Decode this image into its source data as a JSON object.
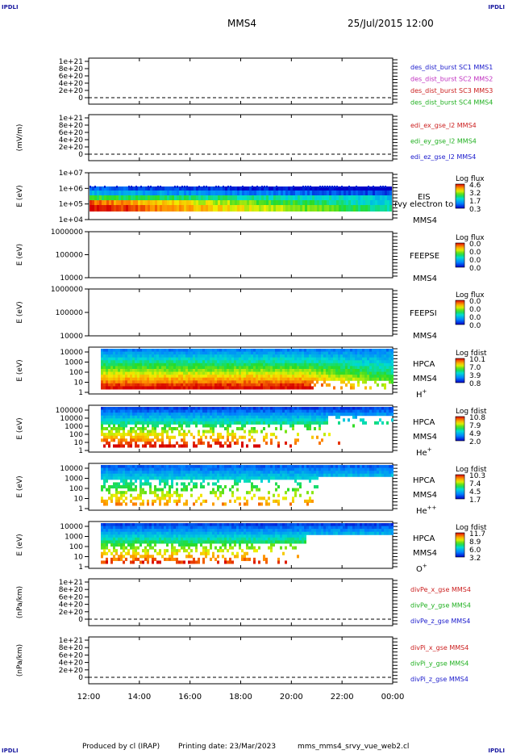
{
  "header": {
    "corner_text": "IPDLI",
    "spacecraft": "MMS4",
    "datetime": "25/Jul/2015 12:00"
  },
  "footer": {
    "produced": "Produced by cl (IRAP)",
    "printed": "Printing date: 23/Mar/2023",
    "script": "mms_mms4_srvy_vue_web2.cl"
  },
  "chart_data": {
    "type": "heatmap",
    "x": {
      "ticks": [
        "12:00",
        "14:00",
        "16:00",
        "18:00",
        "20:00",
        "22:00",
        "00:00"
      ],
      "range_hours": [
        12,
        24
      ]
    },
    "panels": [
      {
        "id": "fpi-density",
        "kind": "line",
        "ylabel": "",
        "yticks": [
          "1e+21",
          "8e+20",
          "6e+20",
          "4e+20",
          "2e+20",
          "0"
        ],
        "ylim": [
          0,
          1e+21
        ],
        "labels": [
          {
            "text": "des_dist_burst SC1 MMS1",
            "color": "#1a1acc"
          },
          {
            "text": "des_dist_burst SC2 MMS2",
            "color": "#c030c0"
          },
          {
            "text": "des_dist_burst SC3 MMS3",
            "color": "#cc2020"
          },
          {
            "text": "des_dist_burst SC4 MMS4",
            "color": "#20b020"
          }
        ]
      },
      {
        "id": "edi-efield",
        "kind": "line",
        "ylabel": "(mV/m)",
        "yticks": [
          "1e+21",
          "8e+20",
          "6e+20",
          "4e+20",
          "2e+20",
          "0"
        ],
        "ylim": [
          0,
          1e+21
        ],
        "labels": [
          {
            "text": "edi_ex_gse_l2 MMS4",
            "color": "#cc2020"
          },
          {
            "text": "edi_ey_gse_l2 MMS4",
            "color": "#20b020"
          },
          {
            "text": "edi_ez_gse_l2 MMS4",
            "color": "#1a1acc"
          }
        ]
      },
      {
        "id": "eis-electron",
        "kind": "spectrogram",
        "ylabel": "E (eV)",
        "yticks": [
          "1e+07",
          "1e+06",
          "1e+05",
          "1e+04"
        ],
        "ylim": [
          10000,
          10000000
        ],
        "labels": [
          "EIS",
          "rvy electron to",
          "MMS4"
        ],
        "colorbar": {
          "title": "Log flux",
          "ticks": [
            "4.6",
            "3.2",
            "1.7",
            "0.3"
          ]
        },
        "levels": [
          1.0,
          0.85,
          0.55,
          0.35
        ]
      },
      {
        "id": "feeps-electron",
        "kind": "spectrogram-empty",
        "ylabel": "E (eV)",
        "yticks": [
          "1000000",
          "100000",
          "10000"
        ],
        "ylim": [
          10000,
          1000000
        ],
        "labels": [
          "FEEPSE",
          "MMS4"
        ],
        "colorbar": {
          "title": "Log flux",
          "ticks": [
            "0.0",
            "0.0",
            "0.0",
            "0.0"
          ]
        }
      },
      {
        "id": "feeps-ion",
        "kind": "spectrogram-empty",
        "ylabel": "E (eV)",
        "yticks": [
          "1000000",
          "100000",
          "10000"
        ],
        "ylim": [
          10000,
          1000000
        ],
        "labels": [
          "FEEPSI",
          "MMS4"
        ],
        "colorbar": {
          "title": "Log flux",
          "ticks": [
            "0.0",
            "0.0",
            "0.0",
            "0.0"
          ]
        }
      },
      {
        "id": "hpca-hplus",
        "kind": "spectrogram",
        "ylabel": "E (eV)",
        "yticks": [
          "10000",
          "1000",
          "100",
          "10",
          "1"
        ],
        "ylim": [
          1,
          40000
        ],
        "labels": [
          "HPCA",
          "MMS4"
        ],
        "species": {
          "base": "H",
          "sup": "+"
        },
        "colorbar": {
          "title": "Log fdist",
          "ticks": [
            "10.1",
            "7.0",
            "3.9",
            "0.8"
          ]
        }
      },
      {
        "id": "hpca-heplus",
        "kind": "spectrogram",
        "ylabel": "E (eV)",
        "yticks": [
          "100000",
          "10000",
          "1000",
          "100",
          "10",
          "1"
        ],
        "ylim": [
          1,
          100000
        ],
        "labels": [
          "HPCA",
          "MMS4"
        ],
        "species": {
          "base": "He",
          "sup": "+"
        },
        "colorbar": {
          "title": "Log fdist",
          "ticks": [
            "10.8",
            "7.9",
            "4.9",
            "2.0"
          ]
        }
      },
      {
        "id": "hpca-heplusplus",
        "kind": "spectrogram",
        "ylabel": "E (eV)",
        "yticks": [
          "10000",
          "1000",
          "100",
          "10",
          "1"
        ],
        "ylim": [
          1,
          40000
        ],
        "labels": [
          "HPCA",
          "MMS4"
        ],
        "species": {
          "base": "He",
          "sup": "++"
        },
        "colorbar": {
          "title": "Log fdist",
          "ticks": [
            "10.3",
            "7.4",
            "4.5",
            "1.7"
          ]
        }
      },
      {
        "id": "hpca-oplus",
        "kind": "spectrogram",
        "ylabel": "E (eV)",
        "yticks": [
          "10000",
          "1000",
          "100",
          "10",
          "1"
        ],
        "ylim": [
          1,
          40000
        ],
        "labels": [
          "HPCA",
          "MMS4"
        ],
        "species": {
          "base": "O",
          "sup": "+"
        },
        "colorbar": {
          "title": "Log fdist",
          "ticks": [
            "11.7",
            "8.9",
            "6.0",
            "3.2"
          ]
        }
      },
      {
        "id": "div-pe",
        "kind": "line",
        "ylabel": "(nPa/km)",
        "yticks": [
          "1e+21",
          "8e+20",
          "6e+20",
          "4e+20",
          "2e+20",
          "0"
        ],
        "ylim": [
          0,
          1e+21
        ],
        "labels": [
          {
            "text": "divPe_x_gse MMS4",
            "color": "#cc2020"
          },
          {
            "text": "divPe_y_gse MMS4",
            "color": "#20b020"
          },
          {
            "text": "divPe_z_gse MMS4",
            "color": "#1a1acc"
          }
        ]
      },
      {
        "id": "div-pi",
        "kind": "line",
        "ylabel": "(nPa/km)",
        "yticks": [
          "1e+21",
          "8e+20",
          "6e+20",
          "4e+20",
          "2e+20",
          "0"
        ],
        "ylim": [
          0,
          1e+21
        ],
        "labels": [
          {
            "text": "divPi_x_gse MMS4",
            "color": "#cc2020"
          },
          {
            "text": "divPi_y_gse MMS4",
            "color": "#20b020"
          },
          {
            "text": "divPi_z_gse MMS4",
            "color": "#1a1acc"
          }
        ]
      }
    ]
  }
}
